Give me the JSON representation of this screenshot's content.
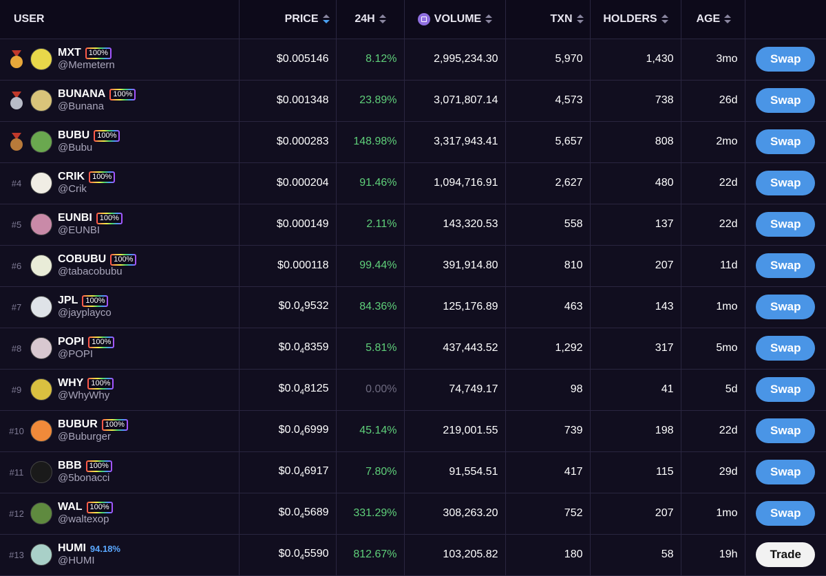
{
  "headers": {
    "user": "USER",
    "price": "PRICE",
    "change": "24H",
    "volume": "VOLUME",
    "txn": "TXN",
    "holders": "HOLDERS",
    "age": "AGE"
  },
  "colors": {
    "background": "#0d0a1a",
    "row_background": "#110e1f",
    "positive": "#5fd07a",
    "swap_button": "#4a95e6",
    "trade_button": "#f2f2f2"
  },
  "rows": [
    {
      "rank": "",
      "medal": "gold-medal-icon",
      "ticker": "MXT",
      "badge": "100%",
      "handle": "@Memetern",
      "price_pre": "$0.005146",
      "price_sub": "",
      "price_post": "",
      "change": "8.12%",
      "volume": "2,995,234.30",
      "txn": "5,970",
      "holders": "1,430",
      "age": "3mo",
      "action": "Swap",
      "avatar_color": "#e8d84a"
    },
    {
      "rank": "",
      "medal": "silver-medal-icon",
      "ticker": "BUNANA",
      "badge": "100%",
      "handle": "@Bunana",
      "price_pre": "$0.001348",
      "price_sub": "",
      "price_post": "",
      "change": "23.89%",
      "volume": "3,071,807.14",
      "txn": "4,573",
      "holders": "738",
      "age": "26d",
      "action": "Swap",
      "avatar_color": "#d9c47a"
    },
    {
      "rank": "",
      "medal": "bronze-medal-icon",
      "ticker": "BUBU",
      "badge": "100%",
      "handle": "@Bubu",
      "price_pre": "$0.000283",
      "price_sub": "",
      "price_post": "",
      "change": "148.98%",
      "volume": "3,317,943.41",
      "txn": "5,657",
      "holders": "808",
      "age": "2mo",
      "action": "Swap",
      "avatar_color": "#6aa84f"
    },
    {
      "rank": "#4",
      "medal": "",
      "ticker": "CRIK",
      "badge": "100%",
      "handle": "@Crik",
      "price_pre": "$0.000204",
      "price_sub": "",
      "price_post": "",
      "change": "91.46%",
      "volume": "1,094,716.91",
      "txn": "2,627",
      "holders": "480",
      "age": "22d",
      "action": "Swap",
      "avatar_color": "#f0ede4"
    },
    {
      "rank": "#5",
      "medal": "",
      "ticker": "EUNBI",
      "badge": "100%",
      "handle": "@EUNBI",
      "price_pre": "$0.000149",
      "price_sub": "",
      "price_post": "",
      "change": "2.11%",
      "volume": "143,320.53",
      "txn": "558",
      "holders": "137",
      "age": "22d",
      "action": "Swap",
      "avatar_color": "#c98aa8"
    },
    {
      "rank": "#6",
      "medal": "",
      "ticker": "COBUBU",
      "badge": "100%",
      "handle": "@tabacobubu",
      "price_pre": "$0.000118",
      "price_sub": "",
      "price_post": "",
      "change": "99.44%",
      "volume": "391,914.80",
      "txn": "810",
      "holders": "207",
      "age": "11d",
      "action": "Swap",
      "avatar_color": "#e9ecd8"
    },
    {
      "rank": "#7",
      "medal": "",
      "ticker": "JPL",
      "badge": "100%",
      "handle": "@jayplayco",
      "price_pre": "$0.0",
      "price_sub": "4",
      "price_post": "9532",
      "change": "84.36%",
      "volume": "125,176.89",
      "txn": "463",
      "holders": "143",
      "age": "1mo",
      "action": "Swap",
      "avatar_color": "#dfe3e8"
    },
    {
      "rank": "#8",
      "medal": "",
      "ticker": "POPI",
      "badge": "100%",
      "handle": "@POPI",
      "price_pre": "$0.0",
      "price_sub": "4",
      "price_post": "8359",
      "change": "5.81%",
      "volume": "437,443.52",
      "txn": "1,292",
      "holders": "317",
      "age": "5mo",
      "action": "Swap",
      "avatar_color": "#d8c8d0"
    },
    {
      "rank": "#9",
      "medal": "",
      "ticker": "WHY",
      "badge": "100%",
      "handle": "@WhyWhy",
      "price_pre": "$0.0",
      "price_sub": "4",
      "price_post": "8125",
      "change": "0.00%",
      "volume": "74,749.17",
      "txn": "98",
      "holders": "41",
      "age": "5d",
      "action": "Swap",
      "avatar_color": "#d9c040"
    },
    {
      "rank": "#10",
      "medal": "",
      "ticker": "BUBUR",
      "badge": "100%",
      "handle": "@Buburger",
      "price_pre": "$0.0",
      "price_sub": "4",
      "price_post": "6999",
      "change": "45.14%",
      "volume": "219,001.55",
      "txn": "739",
      "holders": "198",
      "age": "22d",
      "action": "Swap",
      "avatar_color": "#f08a3a"
    },
    {
      "rank": "#11",
      "medal": "",
      "ticker": "BBB",
      "badge": "100%",
      "handle": "@5bonacci",
      "price_pre": "$0.0",
      "price_sub": "4",
      "price_post": "6917",
      "change": "7.80%",
      "volume": "91,554.51",
      "txn": "417",
      "holders": "115",
      "age": "29d",
      "action": "Swap",
      "avatar_color": "#1a1a1a"
    },
    {
      "rank": "#12",
      "medal": "",
      "ticker": "WAL",
      "badge": "100%",
      "handle": "@waltexop",
      "price_pre": "$0.0",
      "price_sub": "4",
      "price_post": "5689",
      "change": "331.29%",
      "volume": "308,263.20",
      "txn": "752",
      "holders": "207",
      "age": "1mo",
      "action": "Swap",
      "avatar_color": "#5f8a3f"
    },
    {
      "rank": "#13",
      "medal": "",
      "ticker": "HUMI",
      "badge": "94.18%",
      "handle": "@HUMI",
      "price_pre": "$0.0",
      "price_sub": "4",
      "price_post": "5590",
      "change": "812.67%",
      "volume": "103,205.82",
      "txn": "180",
      "holders": "58",
      "age": "19h",
      "action": "Trade",
      "avatar_color": "#a9d0c8"
    }
  ]
}
